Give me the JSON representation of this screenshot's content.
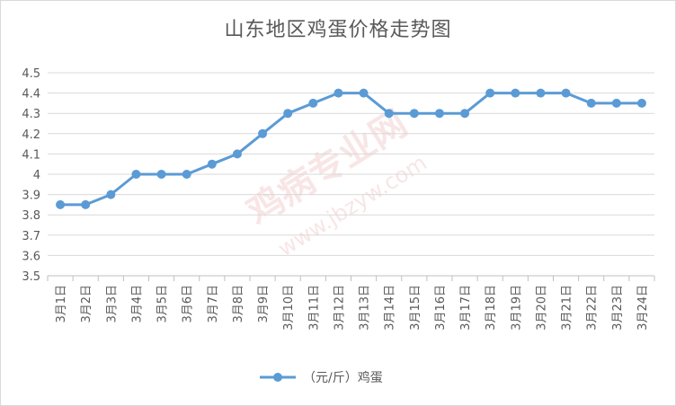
{
  "chart_data": {
    "type": "line",
    "title": "山东地区鸡蛋价格走势图",
    "categories": [
      "3月1日",
      "3月2日",
      "3月3日",
      "3月4日",
      "3月5日",
      "3月6日",
      "3月7日",
      "3月8日",
      "3月9日",
      "3月10日",
      "3月11日",
      "3月12日",
      "3月13日",
      "3月14日",
      "3月15日",
      "3月16日",
      "3月17日",
      "3月18日",
      "3月19日",
      "3月20日",
      "3月21日",
      "3月22日",
      "3月23日",
      "3月24日"
    ],
    "series": [
      {
        "name": "（元/斤）鸡蛋",
        "values": [
          3.85,
          3.85,
          3.9,
          4.0,
          4.0,
          4.0,
          4.05,
          4.1,
          4.2,
          4.3,
          4.35,
          4.4,
          4.4,
          4.3,
          4.3,
          4.3,
          4.3,
          4.4,
          4.4,
          4.4,
          4.4,
          4.35,
          4.35,
          4.35
        ]
      }
    ],
    "yticks": [
      "3.5",
      "3.6",
      "3.7",
      "3.8",
      "3.9",
      "4",
      "4.1",
      "4.2",
      "4.3",
      "4.4",
      "4.5"
    ],
    "ylim": [
      3.5,
      4.5
    ],
    "grid": true,
    "legend": "bottom",
    "colors": {
      "line": "#5b9bd5",
      "grid": "#d9d9d9",
      "axis": "#bfbfbf"
    }
  },
  "watermark": {
    "brand": "鸡病专业网",
    "url": "www.jbzyw.com",
    "slogan": "鸡病专业网"
  }
}
